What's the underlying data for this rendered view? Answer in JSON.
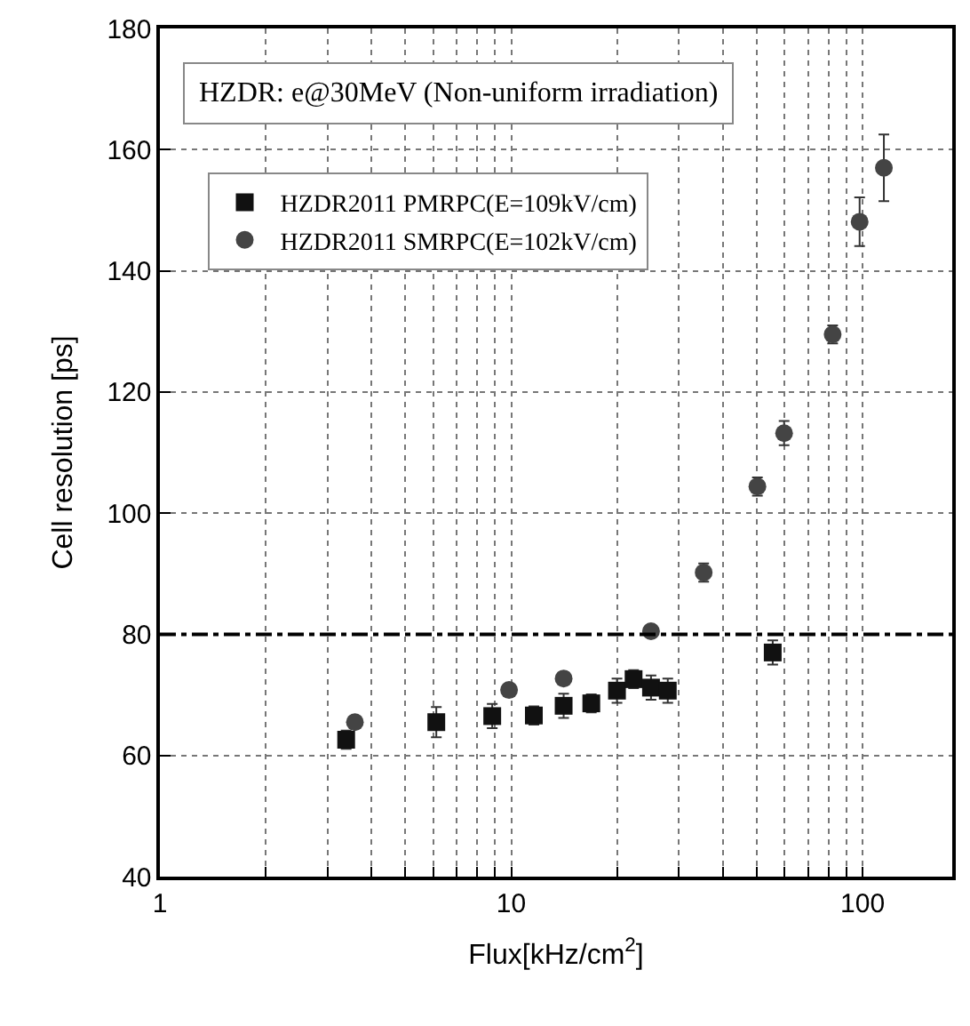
{
  "chart_data": {
    "type": "scatter",
    "xlabel": "Flux[kHz/cm$^{2}$]",
    "ylabel": "Cell resolution [ps]",
    "annotations": [
      "HZDR: e@30MeV (Non-uniform irradiation)"
    ],
    "log": "x",
    "xlim": [
      1,
      180
    ],
    "ylim": [
      40,
      180
    ],
    "xticks": [
      1,
      {
        "value": 2,
        "label": null
      },
      {
        "value": 3,
        "label": null
      },
      {
        "value": 4,
        "label": null
      },
      {
        "value": 5,
        "label": null
      },
      {
        "value": 6,
        "label": null
      },
      {
        "value": 7,
        "label": null
      },
      {
        "value": 8,
        "label": null
      },
      {
        "value": 9,
        "label": null
      },
      10,
      {
        "value": 20,
        "label": null
      },
      {
        "value": 30,
        "label": null
      },
      {
        "value": 40,
        "label": null
      },
      {
        "value": 50,
        "label": null
      },
      {
        "value": 60,
        "label": null
      },
      {
        "value": 70,
        "label": null
      },
      {
        "value": 80,
        "label": null
      },
      {
        "value": 90,
        "label": null
      },
      100
    ],
    "yticks": [
      40,
      60,
      80,
      100,
      120,
      140,
      160,
      180
    ],
    "grid": true,
    "legend": "top left",
    "ref_lines": [
      {
        "axis": "y",
        "value": 80,
        "color": "#000000",
        "line_style": "dashdot"
      }
    ],
    "series": [
      {
        "name": "HZDR2011 PMRPC(E=109kV/cm)",
        "color": "#111111",
        "marker": "square",
        "x": [
          3.39,
          6.12,
          8.83,
          11.6,
          14.1,
          16.9,
          20.0,
          22.3,
          25.0,
          27.9,
          55.5
        ],
        "values": [
          62.6,
          65.5,
          66.5,
          66.6,
          68.2,
          68.6,
          70.7,
          72.6,
          71.2,
          70.7,
          77.0
        ],
        "errors": [
          1.5,
          2.5,
          2,
          1.5,
          2,
          1.5,
          2,
          1.5,
          2,
          2,
          2
        ]
      },
      {
        "name": "HZDR2011 SMRPC(E=102kV/cm)",
        "color": "#444444",
        "marker": "circle",
        "x": [
          3.59,
          9.86,
          14.1,
          25.0,
          35.3,
          50.2,
          59.8,
          82.2,
          98.1,
          115
        ],
        "values": [
          65.5,
          70.8,
          72.7,
          80.5,
          90.2,
          104.4,
          113.2,
          129.5,
          148.1,
          157.0
        ],
        "errors": [
          1,
          1,
          1,
          1,
          1.5,
          1.5,
          2,
          1.5,
          4,
          5.5
        ]
      }
    ]
  }
}
